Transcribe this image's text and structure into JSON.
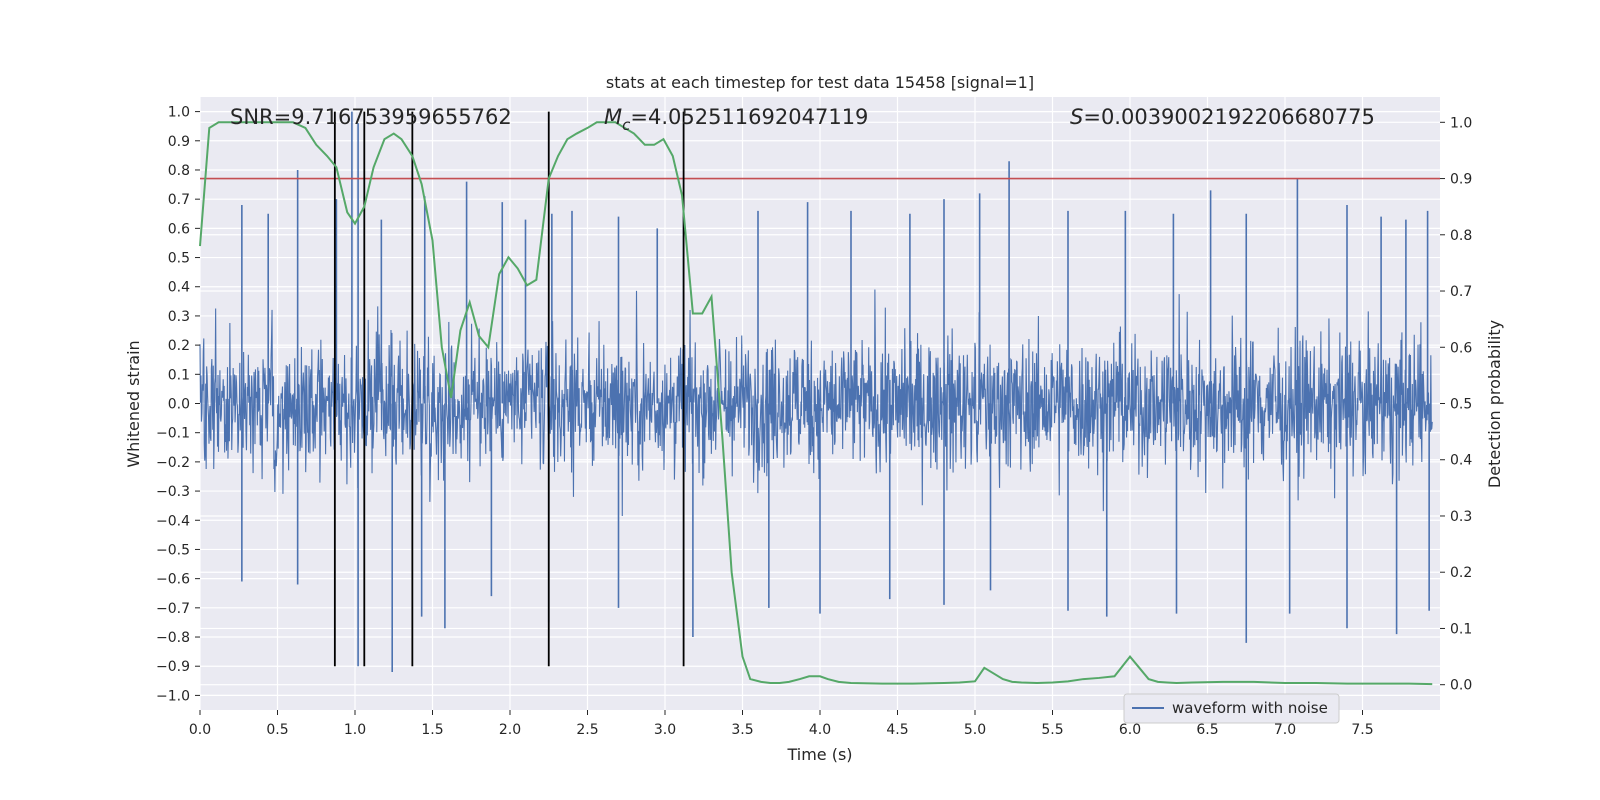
{
  "chart_data": {
    "type": "line",
    "title": "stats at each timestep for test data 15458 [signal=1]",
    "xlabel": "Time (s)",
    "ylabel": "Whitened strain",
    "y2label": "Detection probability",
    "xlim": [
      0.0,
      8.0
    ],
    "ylim": [
      -1.05,
      1.05
    ],
    "y2lim": [
      -0.045,
      1.045
    ],
    "xticks": [
      0.0,
      0.5,
      1.0,
      1.5,
      2.0,
      2.5,
      3.0,
      3.5,
      4.0,
      4.5,
      5.0,
      5.5,
      6.0,
      6.5,
      7.0,
      7.5
    ],
    "yticks": [
      1.0,
      0.9,
      0.8,
      0.7,
      0.6,
      0.5,
      0.4,
      0.3,
      0.2,
      0.1,
      0.0,
      -0.1,
      -0.2,
      -0.3,
      -0.4,
      -0.5,
      -0.6,
      -0.7,
      -0.8,
      -0.9,
      -1.0
    ],
    "y2ticks": [
      1.0,
      0.9,
      0.8,
      0.7,
      0.6,
      0.5,
      0.4,
      0.3,
      0.2,
      0.1,
      0.0
    ],
    "grid": true,
    "legend": {
      "position": "lower-right",
      "entries": [
        "waveform with noise"
      ]
    },
    "stats": {
      "snr": "SNR=9.716753959655762",
      "mc_symbol": "M",
      "mc_sub": "c",
      "mc_value": "=4.052511692047119",
      "s_symbol": "S",
      "s_value": "=0.0039002192206680775"
    },
    "threshold": {
      "axis": "y2",
      "value": 0.9,
      "color": "#c44e52"
    },
    "vertical_lines": [
      0.87,
      1.06,
      1.37,
      2.25,
      3.12
    ],
    "series": [
      {
        "name": "waveform with noise",
        "axis": "y",
        "color": "#4c72b0",
        "description": "noisy whitened strain, envelope approx ±0.4 with spikes",
        "spikes_up": [
          [
            0.27,
            0.68
          ],
          [
            0.44,
            0.65
          ],
          [
            0.63,
            0.8
          ],
          [
            0.88,
            0.7
          ],
          [
            0.98,
            1.0
          ],
          [
            1.02,
            0.96
          ],
          [
            1.17,
            0.63
          ],
          [
            1.45,
            0.71
          ],
          [
            1.72,
            0.76
          ],
          [
            1.95,
            0.69
          ],
          [
            2.1,
            0.63
          ],
          [
            2.27,
            0.65
          ],
          [
            2.4,
            0.66
          ],
          [
            2.7,
            0.64
          ],
          [
            2.95,
            0.6
          ],
          [
            3.12,
            0.64
          ],
          [
            3.6,
            0.66
          ],
          [
            3.92,
            0.69
          ],
          [
            4.2,
            0.66
          ],
          [
            4.58,
            0.65
          ],
          [
            4.8,
            0.7
          ],
          [
            5.03,
            0.72
          ],
          [
            5.22,
            0.83
          ],
          [
            5.6,
            0.66
          ],
          [
            5.97,
            0.66
          ],
          [
            6.28,
            0.65
          ],
          [
            6.52,
            0.73
          ],
          [
            6.75,
            0.65
          ],
          [
            7.08,
            0.77
          ],
          [
            7.4,
            0.68
          ],
          [
            7.62,
            0.64
          ],
          [
            7.78,
            0.63
          ],
          [
            7.92,
            0.66
          ]
        ],
        "spikes_down": [
          [
            0.27,
            -0.61
          ],
          [
            0.63,
            -0.62
          ],
          [
            1.02,
            -0.9
          ],
          [
            1.24,
            -0.92
          ],
          [
            1.43,
            -0.73
          ],
          [
            1.58,
            -0.77
          ],
          [
            1.88,
            -0.66
          ],
          [
            2.25,
            -0.75
          ],
          [
            2.7,
            -0.7
          ],
          [
            3.18,
            -0.8
          ],
          [
            3.67,
            -0.7
          ],
          [
            4.0,
            -0.72
          ],
          [
            4.45,
            -0.67
          ],
          [
            4.8,
            -0.69
          ],
          [
            5.1,
            -0.64
          ],
          [
            5.6,
            -0.71
          ],
          [
            5.85,
            -0.73
          ],
          [
            6.3,
            -0.72
          ],
          [
            6.75,
            -0.82
          ],
          [
            7.03,
            -0.72
          ],
          [
            7.4,
            -0.77
          ],
          [
            7.72,
            -0.79
          ],
          [
            7.93,
            -0.71
          ]
        ]
      },
      {
        "name": "detection probability",
        "axis": "y2",
        "color": "#55a868",
        "x": [
          0.0,
          0.06,
          0.12,
          0.3,
          0.5,
          0.6,
          0.68,
          0.75,
          0.82,
          0.88,
          0.95,
          1.0,
          1.06,
          1.12,
          1.19,
          1.25,
          1.3,
          1.37,
          1.43,
          1.5,
          1.56,
          1.62,
          1.68,
          1.74,
          1.8,
          1.86,
          1.93,
          1.99,
          2.05,
          2.11,
          2.17,
          2.25,
          2.31,
          2.37,
          2.43,
          2.5,
          2.56,
          2.62,
          2.68,
          2.74,
          2.8,
          2.87,
          2.93,
          2.99,
          3.05,
          3.11,
          3.18,
          3.24,
          3.3,
          3.37,
          3.43,
          3.5,
          3.55,
          3.62,
          3.68,
          3.74,
          3.8,
          3.87,
          3.93,
          4.0,
          4.05,
          4.12,
          4.2,
          4.4,
          4.6,
          4.8,
          4.9,
          5.0,
          5.06,
          5.12,
          5.18,
          5.24,
          5.3,
          5.4,
          5.5,
          5.6,
          5.7,
          5.8,
          5.9,
          6.0,
          6.06,
          6.12,
          6.18,
          6.24,
          6.3,
          6.4,
          6.6,
          6.8,
          7.0,
          7.2,
          7.4,
          7.6,
          7.8,
          7.95
        ],
        "y": [
          0.78,
          0.99,
          1.0,
          1.0,
          1.0,
          1.0,
          0.99,
          0.96,
          0.94,
          0.92,
          0.84,
          0.82,
          0.85,
          0.92,
          0.97,
          0.98,
          0.97,
          0.94,
          0.89,
          0.79,
          0.6,
          0.51,
          0.63,
          0.68,
          0.62,
          0.6,
          0.73,
          0.76,
          0.74,
          0.71,
          0.72,
          0.9,
          0.94,
          0.97,
          0.98,
          0.99,
          1.0,
          1.0,
          1.0,
          0.99,
          0.98,
          0.96,
          0.96,
          0.97,
          0.94,
          0.87,
          0.66,
          0.66,
          0.69,
          0.44,
          0.2,
          0.05,
          0.01,
          0.005,
          0.003,
          0.003,
          0.005,
          0.01,
          0.015,
          0.015,
          0.01,
          0.005,
          0.003,
          0.002,
          0.002,
          0.003,
          0.004,
          0.006,
          0.03,
          0.02,
          0.01,
          0.005,
          0.004,
          0.003,
          0.004,
          0.006,
          0.01,
          0.012,
          0.015,
          0.05,
          0.03,
          0.01,
          0.005,
          0.004,
          0.003,
          0.004,
          0.005,
          0.005,
          0.003,
          0.003,
          0.002,
          0.002,
          0.002,
          0.001
        ]
      }
    ]
  }
}
